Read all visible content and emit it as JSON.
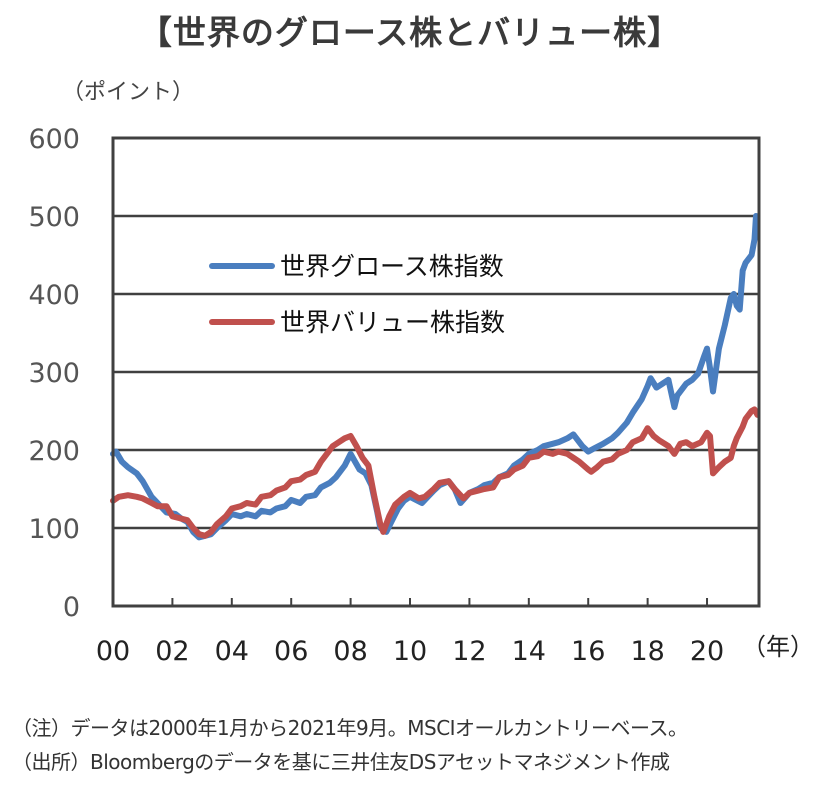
{
  "title": "【世界のグロース株とバリュー株】",
  "unit_label": "（ポイント）",
  "notes": [
    "（注）データは2000年1月から2021年9月。MSCIオールカントリーベース。",
    "（出所）Bloombergのデータを基に三井住友DSアセットマネジメント作成"
  ],
  "chart_data": {
    "type": "line",
    "title": "【世界のグロース株とバリュー株】",
    "xlabel": "（年）",
    "ylabel": "（ポイント）",
    "xlim": [
      2000,
      2021.75
    ],
    "ylim": [
      0,
      600
    ],
    "yticks": [
      0,
      100,
      200,
      300,
      400,
      500,
      600
    ],
    "ytick_labels": [
      "0",
      "100",
      "200",
      "300",
      "400",
      "500",
      "600"
    ],
    "xticks": [
      2000,
      2002,
      2004,
      2006,
      2008,
      2010,
      2012,
      2014,
      2016,
      2018,
      2020
    ],
    "xtick_labels": [
      "00",
      "02",
      "04",
      "06",
      "08",
      "10",
      "12",
      "14",
      "16",
      "18",
      "20"
    ],
    "grid": true,
    "legend_position": "upper-left-center",
    "series": [
      {
        "name": "世界グロース株指数",
        "color": "#4a7ebf",
        "x": [
          2000.0,
          2000.1,
          2000.3,
          2000.5,
          2000.8,
          2001.0,
          2001.3,
          2001.6,
          2001.8,
          2002.1,
          2002.3,
          2002.5,
          2002.7,
          2002.9,
          2003.1,
          2003.3,
          2003.5,
          2003.8,
          2004.0,
          2004.3,
          2004.5,
          2004.8,
          2005.0,
          2005.3,
          2005.5,
          2005.8,
          2006.0,
          2006.3,
          2006.5,
          2006.8,
          2007.0,
          2007.3,
          2007.5,
          2007.8,
          2008.0,
          2008.3,
          2008.5,
          2008.7,
          2008.9,
          2009.0,
          2009.2,
          2009.4,
          2009.6,
          2009.8,
          2010.0,
          2010.4,
          2010.6,
          2010.8,
          2011.0,
          2011.3,
          2011.5,
          2011.7,
          2012.0,
          2012.3,
          2012.5,
          2012.8,
          2013.0,
          2013.3,
          2013.5,
          2013.8,
          2014.0,
          2014.3,
          2014.5,
          2014.8,
          2015.0,
          2015.3,
          2015.5,
          2015.8,
          2016.0,
          2016.2,
          2016.5,
          2016.8,
          2017.0,
          2017.3,
          2017.5,
          2017.8,
          2018.0,
          2018.1,
          2018.3,
          2018.5,
          2018.7,
          2018.9,
          2019.0,
          2019.3,
          2019.5,
          2019.7,
          2019.9,
          2020.0,
          2020.1,
          2020.2,
          2020.4,
          2020.6,
          2020.8,
          2020.9,
          2021.0,
          2021.1,
          2021.2,
          2021.3,
          2021.5,
          2021.6,
          2021.65,
          2021.7
        ],
        "values": [
          195,
          198,
          185,
          178,
          170,
          160,
          140,
          128,
          120,
          118,
          112,
          108,
          95,
          88,
          90,
          92,
          100,
          110,
          118,
          115,
          118,
          115,
          122,
          120,
          125,
          128,
          136,
          132,
          140,
          142,
          152,
          158,
          165,
          180,
          195,
          175,
          170,
          155,
          120,
          100,
          95,
          110,
          125,
          135,
          140,
          132,
          140,
          148,
          155,
          160,
          150,
          132,
          145,
          150,
          155,
          158,
          165,
          170,
          180,
          188,
          195,
          200,
          205,
          208,
          210,
          215,
          220,
          205,
          198,
          202,
          208,
          215,
          222,
          235,
          248,
          265,
          282,
          292,
          280,
          285,
          290,
          255,
          270,
          285,
          290,
          298,
          320,
          330,
          305,
          275,
          330,
          360,
          395,
          400,
          385,
          380,
          430,
          440,
          450,
          470,
          500,
          480
        ]
      },
      {
        "name": "世界バリュー株指数",
        "color": "#c0504d",
        "x": [
          2000.0,
          2000.2,
          2000.5,
          2000.8,
          2001.0,
          2001.3,
          2001.5,
          2001.8,
          2002.0,
          2002.3,
          2002.5,
          2002.7,
          2002.9,
          2003.1,
          2003.3,
          2003.5,
          2003.8,
          2004.0,
          2004.3,
          2004.5,
          2004.8,
          2005.0,
          2005.3,
          2005.5,
          2005.8,
          2006.0,
          2006.3,
          2006.5,
          2006.8,
          2007.0,
          2007.2,
          2007.4,
          2007.6,
          2007.8,
          2008.0,
          2008.2,
          2008.4,
          2008.6,
          2008.8,
          2009.0,
          2009.1,
          2009.3,
          2009.5,
          2009.8,
          2010.0,
          2010.3,
          2010.5,
          2010.8,
          2011.0,
          2011.3,
          2011.5,
          2011.8,
          2012.0,
          2012.3,
          2012.5,
          2012.8,
          2013.0,
          2013.3,
          2013.5,
          2013.8,
          2014.0,
          2014.3,
          2014.5,
          2014.8,
          2015.0,
          2015.3,
          2015.5,
          2015.7,
          2016.0,
          2016.1,
          2016.3,
          2016.5,
          2016.8,
          2017.0,
          2017.3,
          2017.5,
          2017.8,
          2018.0,
          2018.2,
          2018.4,
          2018.7,
          2018.9,
          2019.1,
          2019.3,
          2019.5,
          2019.8,
          2020.0,
          2020.1,
          2020.2,
          2020.4,
          2020.6,
          2020.8,
          2020.9,
          2021.0,
          2021.2,
          2021.3,
          2021.5,
          2021.6,
          2021.7
        ],
        "values": [
          135,
          140,
          142,
          140,
          138,
          132,
          128,
          128,
          115,
          112,
          110,
          100,
          92,
          90,
          95,
          105,
          115,
          125,
          128,
          132,
          130,
          140,
          142,
          148,
          152,
          160,
          162,
          168,
          172,
          185,
          195,
          205,
          210,
          215,
          218,
          205,
          190,
          180,
          140,
          105,
          95,
          115,
          130,
          140,
          145,
          138,
          140,
          150,
          158,
          160,
          150,
          138,
          145,
          148,
          150,
          152,
          165,
          168,
          175,
          180,
          190,
          192,
          198,
          195,
          198,
          195,
          190,
          185,
          175,
          172,
          178,
          185,
          188,
          195,
          200,
          210,
          215,
          228,
          218,
          212,
          205,
          195,
          208,
          210,
          205,
          210,
          222,
          218,
          170,
          178,
          185,
          190,
          205,
          215,
          230,
          240,
          250,
          252,
          245
        ]
      }
    ]
  }
}
